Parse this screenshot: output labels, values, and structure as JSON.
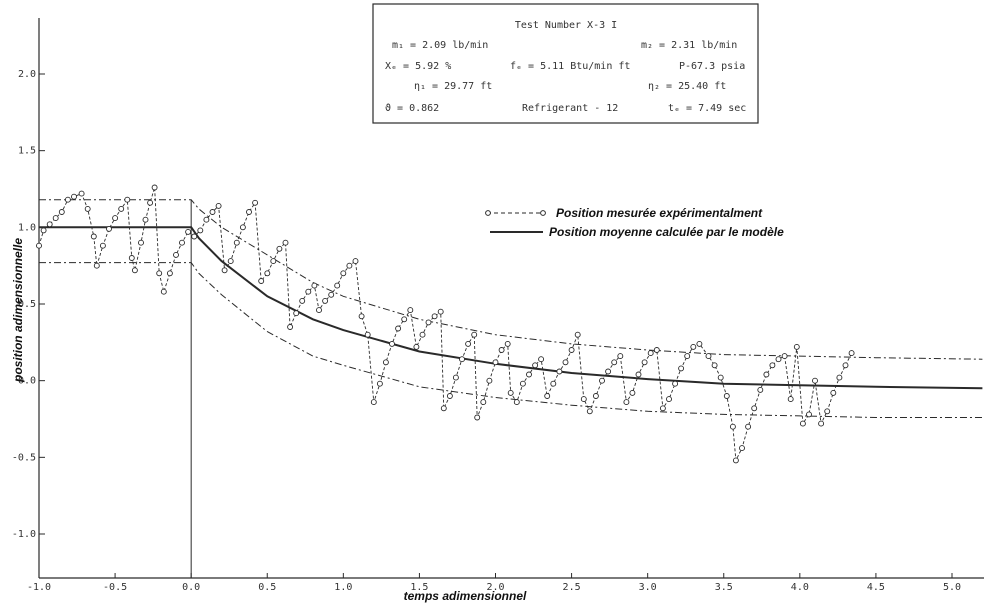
{
  "chart_data": {
    "type": "line",
    "xlabel": "temps adimensionnel",
    "ylabel": "position adimensionnelle",
    "xlim": [
      -1.0,
      5.2
    ],
    "ylim": [
      -1.3,
      2.2
    ],
    "x_ticks": [
      -1.0,
      -0.5,
      0.0,
      0.5,
      1.0,
      1.5,
      2.0,
      2.5,
      3.0,
      3.5,
      4.0,
      4.5,
      5.0
    ],
    "x_tick_labels": [
      "-1.0",
      "-0.5",
      "0.0",
      "0.5",
      "1.0",
      "1.5",
      "2.0",
      "2.5",
      "3.0",
      "3.5",
      "4.0",
      "4.5",
      "5.0"
    ],
    "y_ticks": [
      2.0,
      1.5,
      1.0,
      0.5,
      0.0,
      -0.5,
      -1.0
    ],
    "y_tick_labels": [
      "2.0",
      "1.5",
      "1.0",
      "0.5",
      "0.0",
      "-0.5",
      "-1.0"
    ],
    "grid": false,
    "legend_position": "top-right",
    "series": [
      {
        "name": "Position mesurée expérimentalment",
        "style": "dashed-with-circle-markers",
        "points": [
          [
            -1.0,
            0.88
          ],
          [
            -0.97,
            0.98
          ],
          [
            -0.93,
            1.02
          ],
          [
            -0.89,
            1.06
          ],
          [
            -0.85,
            1.1
          ],
          [
            -0.81,
            1.18
          ],
          [
            -0.77,
            1.2
          ],
          [
            -0.72,
            1.22
          ],
          [
            -0.68,
            1.12
          ],
          [
            -0.64,
            0.94
          ],
          [
            -0.62,
            0.75
          ],
          [
            -0.58,
            0.88
          ],
          [
            -0.54,
            0.99
          ],
          [
            -0.5,
            1.06
          ],
          [
            -0.46,
            1.12
          ],
          [
            -0.42,
            1.18
          ],
          [
            -0.39,
            0.8
          ],
          [
            -0.37,
            0.72
          ],
          [
            -0.33,
            0.9
          ],
          [
            -0.3,
            1.05
          ],
          [
            -0.27,
            1.16
          ],
          [
            -0.24,
            1.26
          ],
          [
            -0.21,
            0.7
          ],
          [
            -0.18,
            0.58
          ],
          [
            -0.14,
            0.7
          ],
          [
            -0.1,
            0.82
          ],
          [
            -0.06,
            0.9
          ],
          [
            -0.02,
            0.97
          ],
          [
            0.02,
            0.94
          ],
          [
            0.06,
            0.98
          ],
          [
            0.1,
            1.05
          ],
          [
            0.14,
            1.1
          ],
          [
            0.18,
            1.14
          ],
          [
            0.22,
            0.72
          ],
          [
            0.26,
            0.78
          ],
          [
            0.3,
            0.9
          ],
          [
            0.34,
            1.0
          ],
          [
            0.38,
            1.1
          ],
          [
            0.42,
            1.16
          ],
          [
            0.46,
            0.65
          ],
          [
            0.5,
            0.7
          ],
          [
            0.54,
            0.78
          ],
          [
            0.58,
            0.86
          ],
          [
            0.62,
            0.9
          ],
          [
            0.65,
            0.35
          ],
          [
            0.69,
            0.44
          ],
          [
            0.73,
            0.52
          ],
          [
            0.77,
            0.58
          ],
          [
            0.81,
            0.62
          ],
          [
            0.84,
            0.46
          ],
          [
            0.88,
            0.52
          ],
          [
            0.92,
            0.56
          ],
          [
            0.96,
            0.62
          ],
          [
            1.0,
            0.7
          ],
          [
            1.04,
            0.75
          ],
          [
            1.08,
            0.78
          ],
          [
            1.12,
            0.42
          ],
          [
            1.16,
            0.3
          ],
          [
            1.2,
            -0.14
          ],
          [
            1.24,
            -0.02
          ],
          [
            1.28,
            0.12
          ],
          [
            1.32,
            0.24
          ],
          [
            1.36,
            0.34
          ],
          [
            1.4,
            0.4
          ],
          [
            1.44,
            0.46
          ],
          [
            1.48,
            0.22
          ],
          [
            1.52,
            0.3
          ],
          [
            1.56,
            0.38
          ],
          [
            1.6,
            0.42
          ],
          [
            1.64,
            0.45
          ],
          [
            1.66,
            -0.18
          ],
          [
            1.7,
            -0.1
          ],
          [
            1.74,
            0.02
          ],
          [
            1.78,
            0.14
          ],
          [
            1.82,
            0.24
          ],
          [
            1.86,
            0.3
          ],
          [
            1.88,
            -0.24
          ],
          [
            1.92,
            -0.14
          ],
          [
            1.96,
            0.0
          ],
          [
            2.0,
            0.12
          ],
          [
            2.04,
            0.2
          ],
          [
            2.08,
            0.24
          ],
          [
            2.1,
            -0.08
          ],
          [
            2.14,
            -0.14
          ],
          [
            2.18,
            -0.02
          ],
          [
            2.22,
            0.04
          ],
          [
            2.26,
            0.1
          ],
          [
            2.3,
            0.14
          ],
          [
            2.34,
            -0.1
          ],
          [
            2.38,
            -0.02
          ],
          [
            2.42,
            0.06
          ],
          [
            2.46,
            0.12
          ],
          [
            2.5,
            0.2
          ],
          [
            2.54,
            0.3
          ],
          [
            2.58,
            -0.12
          ],
          [
            2.62,
            -0.2
          ],
          [
            2.66,
            -0.1
          ],
          [
            2.7,
            0.0
          ],
          [
            2.74,
            0.06
          ],
          [
            2.78,
            0.12
          ],
          [
            2.82,
            0.16
          ],
          [
            2.86,
            -0.14
          ],
          [
            2.9,
            -0.08
          ],
          [
            2.94,
            0.04
          ],
          [
            2.98,
            0.12
          ],
          [
            3.02,
            0.18
          ],
          [
            3.06,
            0.2
          ],
          [
            3.1,
            -0.18
          ],
          [
            3.14,
            -0.12
          ],
          [
            3.18,
            -0.02
          ],
          [
            3.22,
            0.08
          ],
          [
            3.26,
            0.16
          ],
          [
            3.3,
            0.22
          ],
          [
            3.34,
            0.24
          ],
          [
            3.4,
            0.16
          ],
          [
            3.44,
            0.1
          ],
          [
            3.48,
            0.02
          ],
          [
            3.52,
            -0.1
          ],
          [
            3.56,
            -0.3
          ],
          [
            3.58,
            -0.52
          ],
          [
            3.62,
            -0.44
          ],
          [
            3.66,
            -0.3
          ],
          [
            3.7,
            -0.18
          ],
          [
            3.74,
            -0.06
          ],
          [
            3.78,
            0.04
          ],
          [
            3.82,
            0.1
          ],
          [
            3.86,
            0.14
          ],
          [
            3.9,
            0.16
          ],
          [
            3.94,
            -0.12
          ],
          [
            3.98,
            0.22
          ],
          [
            4.02,
            -0.28
          ],
          [
            4.06,
            -0.22
          ],
          [
            4.1,
            0.0
          ],
          [
            4.14,
            -0.28
          ],
          [
            4.18,
            -0.2
          ],
          [
            4.22,
            -0.08
          ],
          [
            4.26,
            0.02
          ],
          [
            4.3,
            0.1
          ],
          [
            4.34,
            0.18
          ]
        ]
      },
      {
        "name": "Position moyenne calculée par le modèle",
        "style": "solid",
        "points": [
          [
            -1.0,
            1.0
          ],
          [
            0.0,
            1.0
          ],
          [
            0.05,
            0.93
          ],
          [
            0.2,
            0.78
          ],
          [
            0.5,
            0.55
          ],
          [
            0.8,
            0.4
          ],
          [
            1.0,
            0.33
          ],
          [
            1.5,
            0.19
          ],
          [
            2.0,
            0.11
          ],
          [
            2.5,
            0.05
          ],
          [
            3.0,
            0.01
          ],
          [
            3.5,
            -0.02
          ],
          [
            4.0,
            -0.03
          ],
          [
            4.5,
            -0.04
          ],
          [
            5.2,
            -0.05
          ]
        ]
      },
      {
        "name": "",
        "style": "dash-dot-upper",
        "points": [
          [
            -1.0,
            1.18
          ],
          [
            0.0,
            1.18
          ],
          [
            0.05,
            1.12
          ],
          [
            0.2,
            1.0
          ],
          [
            0.5,
            0.82
          ],
          [
            0.8,
            0.64
          ],
          [
            1.0,
            0.55
          ],
          [
            1.5,
            0.4
          ],
          [
            2.0,
            0.3
          ],
          [
            2.5,
            0.24
          ],
          [
            3.0,
            0.2
          ],
          [
            3.5,
            0.17
          ],
          [
            4.0,
            0.16
          ],
          [
            4.5,
            0.15
          ],
          [
            5.2,
            0.14
          ]
        ]
      },
      {
        "name": "",
        "style": "dash-dot-lower",
        "points": [
          [
            -1.0,
            0.77
          ],
          [
            0.0,
            0.77
          ],
          [
            0.05,
            0.7
          ],
          [
            0.2,
            0.56
          ],
          [
            0.5,
            0.32
          ],
          [
            0.8,
            0.16
          ],
          [
            1.0,
            0.1
          ],
          [
            1.5,
            -0.04
          ],
          [
            2.0,
            -0.11
          ],
          [
            2.5,
            -0.16
          ],
          [
            3.0,
            -0.2
          ],
          [
            3.5,
            -0.22
          ],
          [
            4.0,
            -0.23
          ],
          [
            4.5,
            -0.24
          ],
          [
            5.2,
            -0.24
          ]
        ]
      }
    ]
  },
  "info_box": {
    "title": "Test Number X-3 I",
    "row1_left": "m₁ = 2.09 lb/min",
    "row1_right": "m₂ = 2.31 lb/min",
    "row2_left": "Xₑ = 5.92 %",
    "row2_mid": "fₑ = 5.11 Btu/min ft",
    "row2_right": "P-67.3 psia",
    "row3_mid": "η₁ = 29.77 ft",
    "row3_right": "η₂ = 25.40 ft",
    "row4_left": "ϑ = 0.862",
    "row4_mid": "Refrigerant - 12",
    "row4_right": "tₑ = 7.49 sec"
  },
  "legend": {
    "measured": "Position mesurée expérimentalment",
    "model": "Position moyenne calculée par le modèle"
  },
  "colors": {
    "ink": "#2a2a2a",
    "marker_fill": "#ffffff",
    "background": "#ffffff"
  }
}
